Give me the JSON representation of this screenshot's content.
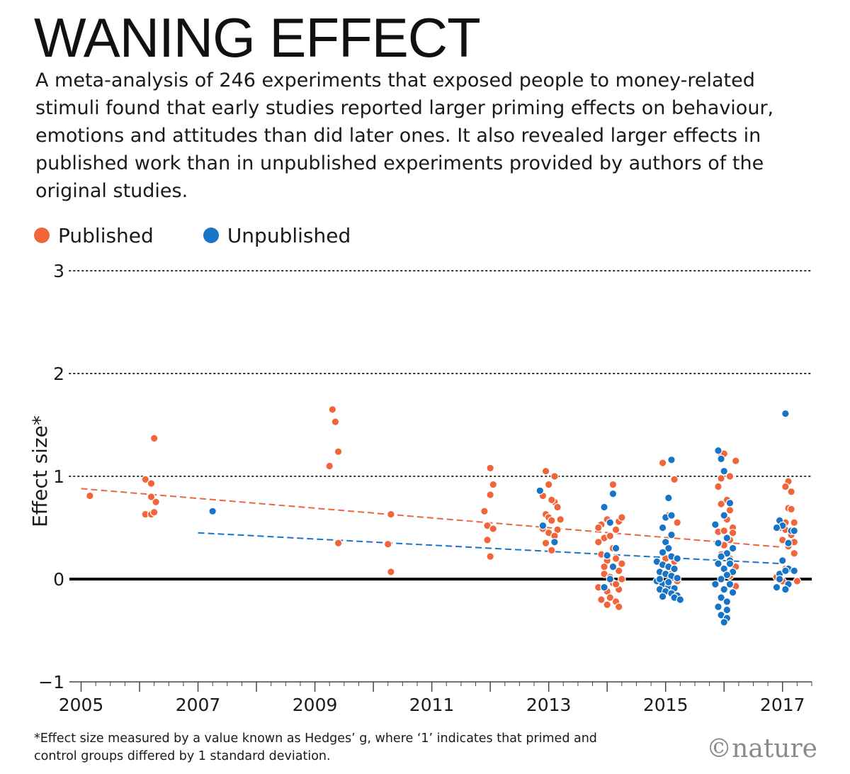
{
  "header": {
    "title": "WANING EFFECT",
    "subtitle": "A meta-analysis of 246 experiments that exposed people to money-related stimuli found that early studies reported larger priming effects on behaviour, emotions and attitudes than did later ones. It also revealed larger effects in published work than in unpublished experiments provided by authors of the original studies."
  },
  "legend": {
    "placement": "top-left",
    "items": [
      {
        "label": "Published",
        "color": "#f0653a"
      },
      {
        "label": "Unpublished",
        "color": "#1874c6"
      }
    ]
  },
  "footnote": "*Effect size measured by a value known as Hedges’ g, where ‘1’ indicates that primed and control groups differed by 1 standard deviation.",
  "logo": "©nature",
  "chart_data": {
    "type": "scatter",
    "title": "WANING EFFECT",
    "ylabel": "Effect size*",
    "xlabel": "",
    "xlim": [
      2004.8,
      2017.5
    ],
    "ylim": [
      -1,
      3
    ],
    "yticks": [
      {
        "value": 3,
        "label": "3"
      },
      {
        "value": 2,
        "label": "2"
      },
      {
        "value": 1,
        "label": "1"
      },
      {
        "value": 0,
        "label": "0"
      },
      {
        "value": -1,
        "label": "−1"
      }
    ],
    "xticks": [
      {
        "value": 2005,
        "label": "2005"
      },
      {
        "value": 2007,
        "label": "2007"
      },
      {
        "value": 2009,
        "label": "2009"
      },
      {
        "value": 2011,
        "label": "2011"
      },
      {
        "value": 2013,
        "label": "2013"
      },
      {
        "value": 2015,
        "label": "2015"
      },
      {
        "value": 2017,
        "label": "2017"
      }
    ],
    "grid": "dotted horizontal at 1, 2, 3; solid baseline at 0",
    "legend_placement": "top-left",
    "series": [
      {
        "name": "Published",
        "color": "#f0653a",
        "trend": {
          "x": [
            2005,
            2017
          ],
          "y": [
            0.88,
            0.31
          ]
        },
        "points": [
          [
            2005.15,
            0.81
          ],
          [
            2006.1,
            0.97
          ],
          [
            2006.2,
            0.93
          ],
          [
            2006.25,
            1.37
          ],
          [
            2006.1,
            0.63
          ],
          [
            2006.2,
            0.63
          ],
          [
            2006.25,
            0.65
          ],
          [
            2006.28,
            0.75
          ],
          [
            2006.2,
            0.8
          ],
          [
            2009.3,
            1.65
          ],
          [
            2009.35,
            1.53
          ],
          [
            2009.4,
            1.24
          ],
          [
            2009.25,
            1.1
          ],
          [
            2009.4,
            0.35
          ],
          [
            2010.3,
            0.63
          ],
          [
            2010.25,
            0.34
          ],
          [
            2010.3,
            0.07
          ],
          [
            2011.9,
            0.66
          ],
          [
            2011.95,
            0.52
          ],
          [
            2012.0,
            1.08
          ],
          [
            2012.05,
            0.92
          ],
          [
            2012.0,
            0.82
          ],
          [
            2012.05,
            0.49
          ],
          [
            2011.95,
            0.38
          ],
          [
            2012.0,
            0.22
          ],
          [
            2012.95,
            1.05
          ],
          [
            2013.0,
            0.92
          ],
          [
            2013.1,
            1.0
          ],
          [
            2012.9,
            0.81
          ],
          [
            2012.95,
            0.63
          ],
          [
            2013.0,
            0.6
          ],
          [
            2013.1,
            0.75
          ],
          [
            2013.15,
            0.7
          ],
          [
            2013.05,
            0.57
          ],
          [
            2012.9,
            0.49
          ],
          [
            2013.0,
            0.45
          ],
          [
            2013.15,
            0.48
          ],
          [
            2013.1,
            0.42
          ],
          [
            2012.95,
            0.35
          ],
          [
            2013.05,
            0.28
          ],
          [
            2013.2,
            0.58
          ],
          [
            2013.05,
            0.77
          ],
          [
            2014.1,
            0.92
          ],
          [
            2014.0,
            0.58
          ],
          [
            2013.9,
            0.53
          ],
          [
            2014.2,
            0.56
          ],
          [
            2014.25,
            0.6
          ],
          [
            2013.95,
            0.4
          ],
          [
            2014.05,
            0.42
          ],
          [
            2014.15,
            0.48
          ],
          [
            2013.85,
            0.36
          ],
          [
            2014.1,
            0.3
          ],
          [
            2013.9,
            0.24
          ],
          [
            2014.0,
            0.18
          ],
          [
            2014.15,
            0.2
          ],
          [
            2014.25,
            0.15
          ],
          [
            2013.95,
            0.05
          ],
          [
            2014.05,
            0.02
          ],
          [
            2014.2,
            0.08
          ],
          [
            2014.1,
            -0.04
          ],
          [
            2013.85,
            -0.08
          ],
          [
            2014.0,
            -0.12
          ],
          [
            2014.2,
            -0.1
          ],
          [
            2013.9,
            -0.2
          ],
          [
            2014.05,
            -0.18
          ],
          [
            2014.15,
            -0.22
          ],
          [
            2014.0,
            -0.25
          ],
          [
            2014.2,
            -0.27
          ],
          [
            2013.95,
            0.12
          ],
          [
            2014.15,
            -0.05
          ],
          [
            2014.25,
            0.0
          ],
          [
            2013.85,
            0.5
          ],
          [
            2014.95,
            1.13
          ],
          [
            2015.15,
            0.97
          ],
          [
            2015.05,
            0.62
          ],
          [
            2015.2,
            0.55
          ],
          [
            2015.15,
            0.17
          ],
          [
            2015.1,
            0.05
          ],
          [
            2015.2,
            -0.02
          ],
          [
            2015.0,
            0.2
          ],
          [
            2015.95,
            1.19
          ],
          [
            2016.0,
            1.22
          ],
          [
            2016.2,
            1.15
          ],
          [
            2015.95,
            0.98
          ],
          [
            2016.1,
            1.0
          ],
          [
            2016.05,
            0.77
          ],
          [
            2015.95,
            0.73
          ],
          [
            2016.1,
            0.67
          ],
          [
            2016.0,
            0.62
          ],
          [
            2016.05,
            0.58
          ],
          [
            2016.15,
            0.5
          ],
          [
            2015.9,
            0.46
          ],
          [
            2016.0,
            0.47
          ],
          [
            2016.1,
            0.38
          ],
          [
            2016.0,
            0.33
          ],
          [
            2015.95,
            0.24
          ],
          [
            2016.1,
            0.2
          ],
          [
            2016.2,
            0.12
          ],
          [
            2016.1,
            0.03
          ],
          [
            2016.2,
            -0.07
          ],
          [
            2015.9,
            0.9
          ],
          [
            2016.15,
            0.45
          ],
          [
            2016.95,
            0.58
          ],
          [
            2017.05,
            0.55
          ],
          [
            2017.1,
            0.95
          ],
          [
            2017.05,
            0.9
          ],
          [
            2017.15,
            0.85
          ],
          [
            2017.1,
            0.69
          ],
          [
            2017.15,
            0.68
          ],
          [
            2016.95,
            0.5
          ],
          [
            2017.05,
            0.48
          ],
          [
            2017.2,
            0.55
          ],
          [
            2017.15,
            0.43
          ],
          [
            2017.0,
            0.38
          ],
          [
            2017.2,
            0.36
          ],
          [
            2017.1,
            0.32
          ],
          [
            2017.2,
            0.25
          ],
          [
            2016.9,
            0.02
          ],
          [
            2017.0,
            -0.02
          ],
          [
            2017.25,
            -0.02
          ],
          [
            2017.05,
            0.1
          ]
        ]
      },
      {
        "name": "Unpublished",
        "color": "#1874c6",
        "trend": {
          "x": [
            2007,
            2017
          ],
          "y": [
            0.45,
            0.15
          ]
        },
        "points": [
          [
            2007.25,
            0.66
          ],
          [
            2012.85,
            0.86
          ],
          [
            2012.9,
            0.52
          ],
          [
            2013.1,
            0.36
          ],
          [
            2014.1,
            0.83
          ],
          [
            2013.95,
            0.7
          ],
          [
            2014.05,
            0.55
          ],
          [
            2014.15,
            0.3
          ],
          [
            2014.0,
            0.23
          ],
          [
            2014.1,
            0.12
          ],
          [
            2014.05,
            0.0
          ],
          [
            2013.95,
            -0.08
          ],
          [
            2015.1,
            1.16
          ],
          [
            2015.05,
            0.79
          ],
          [
            2015.0,
            0.6
          ],
          [
            2015.1,
            0.62
          ],
          [
            2014.95,
            0.5
          ],
          [
            2015.1,
            0.43
          ],
          [
            2015.0,
            0.36
          ],
          [
            2015.05,
            0.3
          ],
          [
            2014.95,
            0.26
          ],
          [
            2015.1,
            0.22
          ],
          [
            2015.2,
            0.2
          ],
          [
            2014.85,
            0.17
          ],
          [
            2014.95,
            0.14
          ],
          [
            2015.05,
            0.12
          ],
          [
            2015.15,
            0.1
          ],
          [
            2014.9,
            0.07
          ],
          [
            2015.0,
            0.05
          ],
          [
            2015.1,
            0.03
          ],
          [
            2015.2,
            0.01
          ],
          [
            2014.85,
            -0.02
          ],
          [
            2014.95,
            -0.05
          ],
          [
            2015.05,
            -0.07
          ],
          [
            2015.15,
            -0.09
          ],
          [
            2014.9,
            -0.1
          ],
          [
            2015.0,
            -0.12
          ],
          [
            2015.1,
            -0.14
          ],
          [
            2015.2,
            -0.16
          ],
          [
            2014.95,
            -0.17
          ],
          [
            2015.15,
            -0.18
          ],
          [
            2015.25,
            -0.2
          ],
          [
            2014.9,
            0.0
          ],
          [
            2015.05,
            -0.03
          ],
          [
            2015.9,
            1.25
          ],
          [
            2015.95,
            1.17
          ],
          [
            2016.0,
            1.05
          ],
          [
            2015.85,
            0.53
          ],
          [
            2016.1,
            0.74
          ],
          [
            2016.0,
            0.62
          ],
          [
            2016.05,
            0.4
          ],
          [
            2015.9,
            0.35
          ],
          [
            2016.15,
            0.3
          ],
          [
            2016.05,
            0.25
          ],
          [
            2015.95,
            0.22
          ],
          [
            2016.1,
            0.18
          ],
          [
            2015.9,
            0.15
          ],
          [
            2016.0,
            0.1
          ],
          [
            2016.15,
            0.07
          ],
          [
            2016.05,
            0.04
          ],
          [
            2015.95,
            0.0
          ],
          [
            2016.1,
            -0.05
          ],
          [
            2016.0,
            -0.1
          ],
          [
            2016.15,
            -0.13
          ],
          [
            2015.95,
            -0.18
          ],
          [
            2016.05,
            -0.22
          ],
          [
            2015.9,
            -0.27
          ],
          [
            2016.05,
            -0.3
          ],
          [
            2015.95,
            -0.35
          ],
          [
            2016.05,
            -0.38
          ],
          [
            2016.0,
            -0.42
          ],
          [
            2016.1,
            0.15
          ],
          [
            2015.85,
            -0.05
          ],
          [
            2017.05,
            1.61
          ],
          [
            2016.95,
            0.57
          ],
          [
            2017.0,
            0.52
          ],
          [
            2017.15,
            0.47
          ],
          [
            2016.9,
            0.5
          ],
          [
            2017.2,
            0.47
          ],
          [
            2017.1,
            0.35
          ],
          [
            2017.0,
            0.18
          ],
          [
            2017.1,
            0.1
          ],
          [
            2016.95,
            0.05
          ],
          [
            2017.05,
            0.08
          ],
          [
            2017.2,
            0.08
          ],
          [
            2016.95,
            0.0
          ],
          [
            2017.1,
            -0.05
          ],
          [
            2017.05,
            -0.1
          ],
          [
            2016.9,
            -0.08
          ]
        ]
      }
    ]
  }
}
